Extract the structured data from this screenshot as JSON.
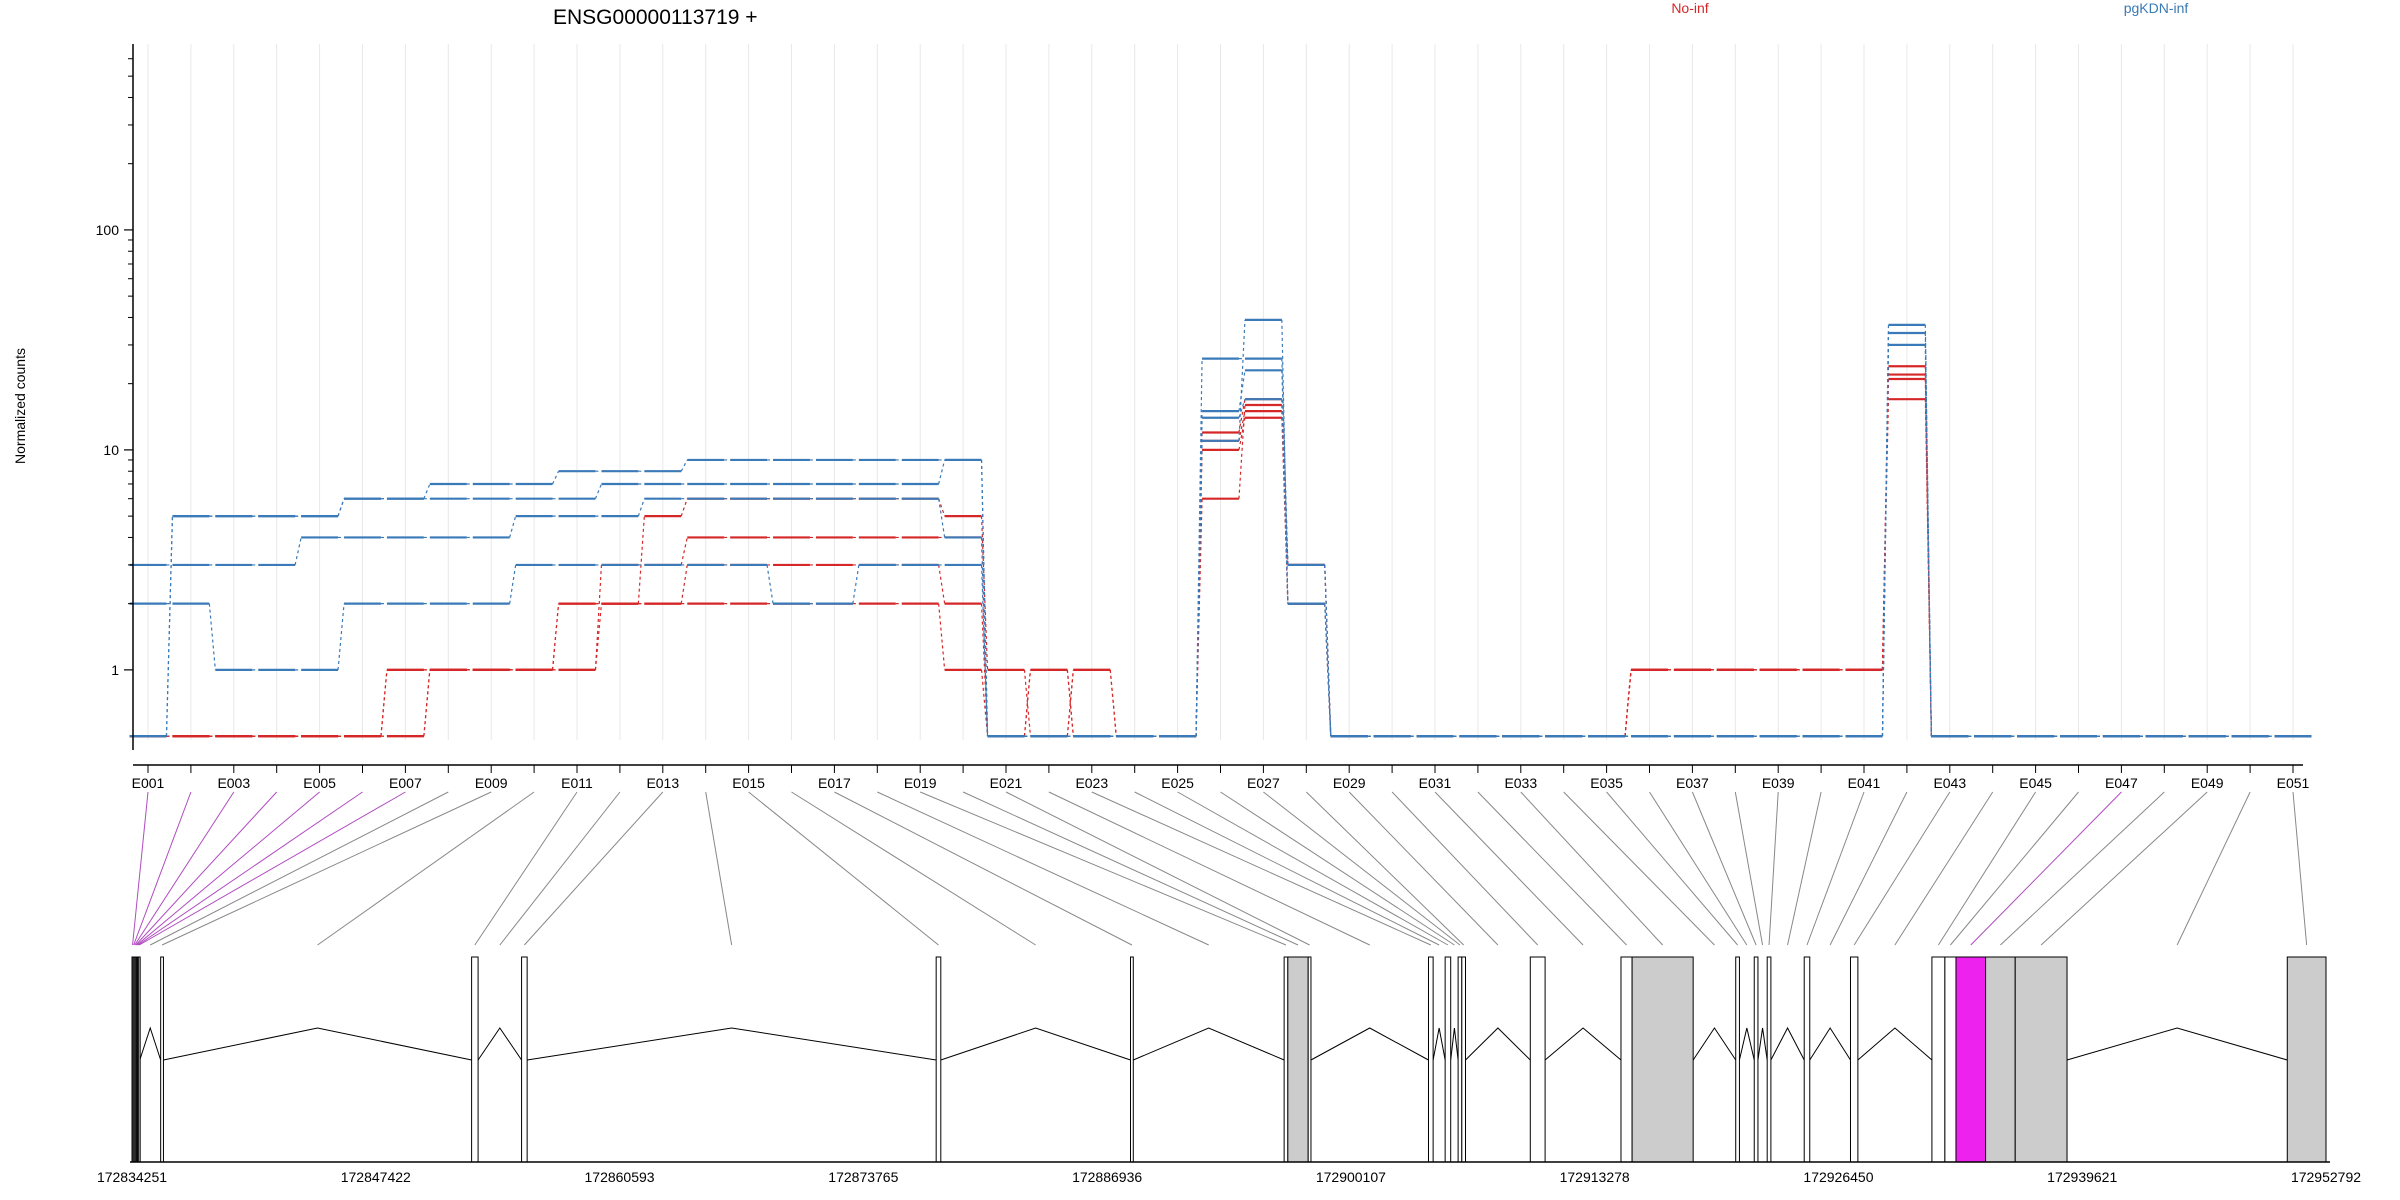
{
  "chart_data": {
    "type": "line",
    "title": "ENSG00000113719 +",
    "ylabel": "Normalized counts",
    "yscale": "log",
    "ylim": [
      0.48,
      700
    ],
    "ytick_values": [
      1,
      10,
      100
    ],
    "ytick_labels": [
      "1",
      "10",
      "100"
    ],
    "ytick_minor": [
      2,
      3,
      4,
      5,
      6,
      7,
      8,
      9,
      20,
      30,
      40,
      50,
      60,
      70,
      80,
      90,
      200,
      300,
      400,
      500,
      600
    ],
    "grid": true,
    "legend": [
      {
        "name": "No-inf",
        "color": "#d62728"
      },
      {
        "name": "pgKDN-inf",
        "color": "#3a7ab8"
      }
    ],
    "exon_count": 51,
    "xtick_labels": [
      "E001",
      "E003",
      "E005",
      "E007",
      "E009",
      "E011",
      "E013",
      "E015",
      "E017",
      "E019",
      "E021",
      "E023",
      "E025",
      "E027",
      "E029",
      "E031",
      "E033",
      "E035",
      "E037",
      "E039",
      "E041",
      "E043",
      "E045",
      "E047",
      "E049",
      "E051"
    ],
    "genomic_axis": {
      "min": 172834251,
      "max": 172952792,
      "tick_values": [
        172834251,
        172847422,
        172860593,
        172873765,
        172886936,
        172900107,
        172913278,
        172926450,
        172939621,
        172952792
      ],
      "tick_labels": [
        "172834251",
        "172847422",
        "172860593",
        "172873765",
        "172886936",
        "172900107",
        "172913278",
        "172926450",
        "172939621",
        "172952792"
      ]
    },
    "highlighted_exons": [
      1,
      2,
      3,
      4,
      5,
      6,
      7,
      47
    ],
    "exon_bins": [
      {
        "s": 172834251,
        "e": 172834311,
        "exon": true
      },
      {
        "s": 172834311,
        "e": 172834371,
        "exon": true
      },
      {
        "s": 172834371,
        "e": 172834431,
        "exon": true
      },
      {
        "s": 172834431,
        "e": 172834491,
        "exon": true
      },
      {
        "s": 172834491,
        "e": 172834551,
        "exon": true
      },
      {
        "s": 172834551,
        "e": 172834611,
        "exon": true
      },
      {
        "s": 172834611,
        "e": 172834671,
        "exon": true
      },
      {
        "s": 172834671,
        "e": 172835800,
        "exon": false
      },
      {
        "s": 172835800,
        "e": 172835950,
        "exon": true
      },
      {
        "s": 172835950,
        "e": 172852600,
        "exon": false
      },
      {
        "s": 172852600,
        "e": 172852950,
        "exon": true
      },
      {
        "s": 172852950,
        "e": 172855300,
        "exon": false
      },
      {
        "s": 172855300,
        "e": 172855600,
        "exon": true
      },
      {
        "s": 172855600,
        "e": 172877700,
        "exon": false
      },
      {
        "s": 172877700,
        "e": 172877950,
        "exon": true
      },
      {
        "s": 172877950,
        "e": 172888200,
        "exon": false
      },
      {
        "s": 172888200,
        "e": 172888350,
        "exon": true
      },
      {
        "s": 172888350,
        "e": 172896500,
        "exon": false
      },
      {
        "s": 172896500,
        "e": 172896700,
        "exon": true
      },
      {
        "s": 172896700,
        "e": 172897800,
        "exon": true
      },
      {
        "s": 172897800,
        "e": 172897950,
        "exon": true
      },
      {
        "s": 172897950,
        "e": 172904300,
        "exon": false
      },
      {
        "s": 172904300,
        "e": 172904550,
        "exon": true
      },
      {
        "s": 172904550,
        "e": 172905200,
        "exon": false
      },
      {
        "s": 172905200,
        "e": 172905500,
        "exon": true
      },
      {
        "s": 172905500,
        "e": 172905900,
        "exon": false
      },
      {
        "s": 172905900,
        "e": 172906100,
        "exon": true
      },
      {
        "s": 172906100,
        "e": 172906300,
        "exon": true
      },
      {
        "s": 172906300,
        "e": 172909800,
        "exon": false
      },
      {
        "s": 172909800,
        "e": 172910600,
        "exon": true
      },
      {
        "s": 172910600,
        "e": 172914700,
        "exon": false
      },
      {
        "s": 172914700,
        "e": 172915300,
        "exon": true
      },
      {
        "s": 172915300,
        "e": 172918600,
        "exon": true
      },
      {
        "s": 172918600,
        "e": 172920900,
        "exon": false
      },
      {
        "s": 172920900,
        "e": 172921100,
        "exon": true
      },
      {
        "s": 172921100,
        "e": 172921900,
        "exon": false
      },
      {
        "s": 172921900,
        "e": 172922100,
        "exon": true
      },
      {
        "s": 172922100,
        "e": 172922600,
        "exon": false
      },
      {
        "s": 172922600,
        "e": 172922800,
        "exon": true
      },
      {
        "s": 172922800,
        "e": 172924600,
        "exon": false
      },
      {
        "s": 172924600,
        "e": 172924900,
        "exon": true
      },
      {
        "s": 172924900,
        "e": 172927100,
        "exon": false
      },
      {
        "s": 172927100,
        "e": 172927500,
        "exon": true
      },
      {
        "s": 172927500,
        "e": 172931500,
        "exon": false
      },
      {
        "s": 172931500,
        "e": 172932200,
        "exon": true
      },
      {
        "s": 172932200,
        "e": 172932800,
        "exon": true
      },
      {
        "s": 172932800,
        "e": 172934400,
        "exon": true
      },
      {
        "s": 172934400,
        "e": 172936000,
        "exon": true
      },
      {
        "s": 172936000,
        "e": 172938800,
        "exon": true
      },
      {
        "s": 172938800,
        "e": 172950700,
        "exon": false
      },
      {
        "s": 172950700,
        "e": 172952792,
        "exon": true
      }
    ],
    "series": [
      {
        "group": "No-inf",
        "color": "#d62728",
        "values": [
          0.5,
          0.5,
          0.5,
          0.5,
          0.5,
          0.5,
          0.5,
          1,
          1,
          1,
          1,
          2,
          2,
          2,
          2,
          2,
          2,
          2,
          2,
          1,
          0.5,
          1,
          0.5,
          0.5,
          0.5,
          6,
          16,
          3,
          0.5,
          0.5,
          0.5,
          0.5,
          0.5,
          0.5,
          0.5,
          1,
          1,
          1,
          1,
          1,
          1,
          17,
          0.5,
          0.5,
          0.5,
          0.5,
          0.5,
          0.5,
          0.5,
          0.5,
          0.5
        ]
      },
      {
        "group": "No-inf",
        "color": "#d62728",
        "values": [
          0.5,
          0.5,
          0.5,
          0.5,
          0.5,
          0.5,
          1,
          1,
          1,
          1,
          2,
          2,
          2,
          3,
          3,
          3,
          3,
          3,
          3,
          2,
          0.5,
          1,
          0.5,
          0.5,
          0.5,
          10,
          14,
          2,
          0.5,
          0.5,
          0.5,
          0.5,
          0.5,
          0.5,
          0.5,
          1,
          1,
          1,
          1,
          1,
          1,
          22,
          0.5,
          0.5,
          0.5,
          0.5,
          0.5,
          0.5,
          0.5,
          0.5,
          0.5
        ]
      },
      {
        "group": "No-inf",
        "color": "#d62728",
        "values": [
          0.5,
          0.5,
          0.5,
          0.5,
          0.5,
          0.5,
          0.5,
          1,
          1,
          1,
          1,
          3,
          3,
          4,
          4,
          4,
          4,
          4,
          4,
          4,
          0.5,
          0.5,
          1,
          0.5,
          0.5,
          11,
          15,
          3,
          0.5,
          0.5,
          0.5,
          0.5,
          0.5,
          0.5,
          0.5,
          1,
          1,
          1,
          1,
          1,
          1,
          24,
          0.5,
          0.5,
          0.5,
          0.5,
          0.5,
          0.5,
          0.5,
          0.5,
          0.5
        ]
      },
      {
        "group": "No-inf",
        "color": "#d62728",
        "values": [
          0.5,
          0.5,
          0.5,
          0.5,
          0.5,
          0.5,
          1,
          1,
          1,
          1,
          2,
          2,
          5,
          6,
          6,
          6,
          6,
          6,
          6,
          5,
          1,
          0.5,
          1,
          0.5,
          0.5,
          12,
          17,
          2,
          0.5,
          0.5,
          0.5,
          0.5,
          0.5,
          0.5,
          0.5,
          1,
          1,
          1,
          1,
          1,
          1,
          21,
          0.5,
          0.5,
          0.5,
          0.5,
          0.5,
          0.5,
          0.5,
          0.5,
          0.5
        ]
      },
      {
        "group": "pgKDN-inf",
        "color": "#3a7ab8",
        "values": [
          2,
          2,
          1,
          1,
          1,
          2,
          2,
          2,
          2,
          3,
          3,
          3,
          3,
          3,
          3,
          2,
          2,
          3,
          3,
          3,
          0.5,
          0.5,
          0.5,
          0.5,
          0.5,
          14,
          17,
          2,
          0.5,
          0.5,
          0.5,
          0.5,
          0.5,
          0.5,
          0.5,
          0.5,
          0.5,
          0.5,
          0.5,
          0.5,
          0.5,
          30,
          0.5,
          0.5,
          0.5,
          0.5,
          0.5,
          0.5,
          0.5,
          0.5,
          0.5
        ]
      },
      {
        "group": "pgKDN-inf",
        "color": "#3a7ab8",
        "values": [
          3,
          3,
          3,
          3,
          4,
          4,
          4,
          4,
          4,
          5,
          5,
          5,
          6,
          6,
          6,
          6,
          6,
          6,
          6,
          4,
          0.5,
          0.5,
          0.5,
          0.5,
          0.5,
          15,
          23,
          3,
          0.5,
          0.5,
          0.5,
          0.5,
          0.5,
          0.5,
          0.5,
          0.5,
          0.5,
          0.5,
          0.5,
          0.5,
          0.5,
          34,
          0.5,
          0.5,
          0.5,
          0.5,
          0.5,
          0.5,
          0.5,
          0.5,
          0.5
        ]
      },
      {
        "group": "pgKDN-inf",
        "color": "#3a7ab8",
        "values": [
          0.5,
          5,
          5,
          5,
          5,
          6,
          6,
          7,
          7,
          7,
          8,
          8,
          8,
          9,
          9,
          9,
          9,
          9,
          9,
          9,
          0.5,
          0.5,
          0.5,
          0.5,
          0.5,
          26,
          26,
          3,
          0.5,
          0.5,
          0.5,
          0.5,
          0.5,
          0.5,
          0.5,
          0.5,
          0.5,
          0.5,
          0.5,
          0.5,
          0.5,
          30,
          0.5,
          0.5,
          0.5,
          0.5,
          0.5,
          0.5,
          0.5,
          0.5,
          0.5
        ]
      },
      {
        "group": "pgKDN-inf",
        "color": "#3a7ab8",
        "values": [
          0.5,
          5,
          5,
          5,
          5,
          6,
          6,
          6,
          6,
          6,
          6,
          7,
          7,
          7,
          7,
          7,
          7,
          7,
          7,
          9,
          0.5,
          0.5,
          0.5,
          0.5,
          0.5,
          11,
          39,
          2,
          0.5,
          0.5,
          0.5,
          0.5,
          0.5,
          0.5,
          0.5,
          0.5,
          0.5,
          0.5,
          0.5,
          0.5,
          0.5,
          37,
          0.5,
          0.5,
          0.5,
          0.5,
          0.5,
          0.5,
          0.5,
          0.5,
          0.5
        ]
      }
    ]
  }
}
